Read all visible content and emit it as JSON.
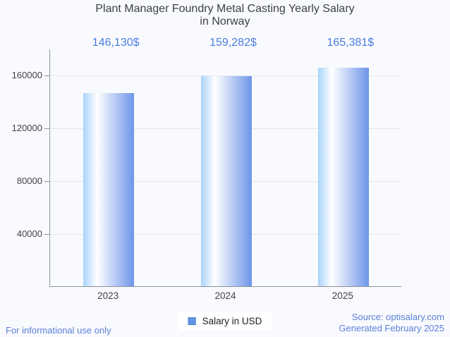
{
  "header": {
    "title_line1": "Plant Manager Foundry Metal Casting Yearly Salary",
    "title_line2": "in Norway"
  },
  "chart_data": {
    "type": "bar",
    "title": "Plant Manager Foundry Metal Casting Yearly Salary in Norway",
    "categories": [
      "2023",
      "2024",
      "2025"
    ],
    "series": [
      {
        "name": "Salary in USD",
        "values": [
          146130,
          159282,
          165381
        ]
      }
    ],
    "value_labels": [
      "146,130$",
      "159,282$",
      "165,381$"
    ],
    "xlabel": "",
    "ylabel": "",
    "yticks": [
      40000,
      80000,
      120000,
      160000
    ],
    "ylim": [
      0,
      180000
    ],
    "grid": true,
    "legend_position": "bottom"
  },
  "legend": {
    "label": "Salary in USD"
  },
  "footer": {
    "left": "For informational use only",
    "source": "Source: optisalary.com",
    "generated": "Generated February 2025"
  },
  "colors": {
    "background": "#f9fafd",
    "title": "#3c4043",
    "value_label": "#4a7de0",
    "footer_link": "#5b80da",
    "axis_line": "#8f9398",
    "gridline": "#e3e5e9",
    "tick_label": "#404347",
    "bar_gradient": [
      "#a9d3fb",
      "#ffffff",
      "#6e95ea"
    ],
    "legend_marker_fill": "#5f97e8",
    "legend_marker_border": "#4d7fc0",
    "legend_bg": "#ffffff",
    "legend_text": "#202124"
  }
}
